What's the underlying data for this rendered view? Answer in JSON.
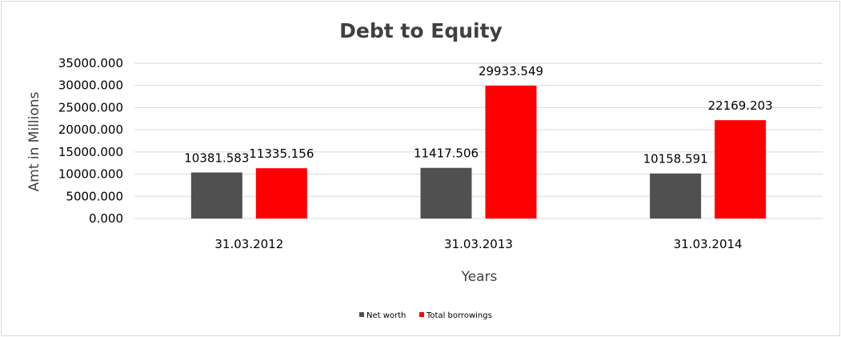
{
  "chart_data": {
    "type": "bar",
    "title": "Debt to Equity",
    "xlabel": "Years",
    "ylabel": "Amt in Millions",
    "categories": [
      "31.03.2012",
      "31.03.2013",
      "31.03.2014"
    ],
    "series": [
      {
        "name": "Net worth",
        "color": "#505050",
        "values": [
          10381.583,
          11417.506,
          10158.591
        ],
        "labels": [
          "10381.583",
          "11417.506",
          "10158.591"
        ]
      },
      {
        "name": "Total borrowings",
        "color": "#ff0000",
        "values": [
          11335.156,
          29933.549,
          22169.203
        ],
        "labels": [
          "11335.156",
          "29933.549",
          "22169.203"
        ]
      }
    ],
    "ylim": [
      0,
      35000
    ],
    "yticks": [
      "0.000",
      "5000.000",
      "10000.000",
      "15000.000",
      "20000.000",
      "25000.000",
      "30000.000",
      "35000.000"
    ],
    "ytick_values": [
      0,
      5000,
      10000,
      15000,
      20000,
      25000,
      30000,
      35000
    ],
    "grid": true,
    "legend_position": "bottom",
    "gridline_color": "#d9d9d9"
  }
}
